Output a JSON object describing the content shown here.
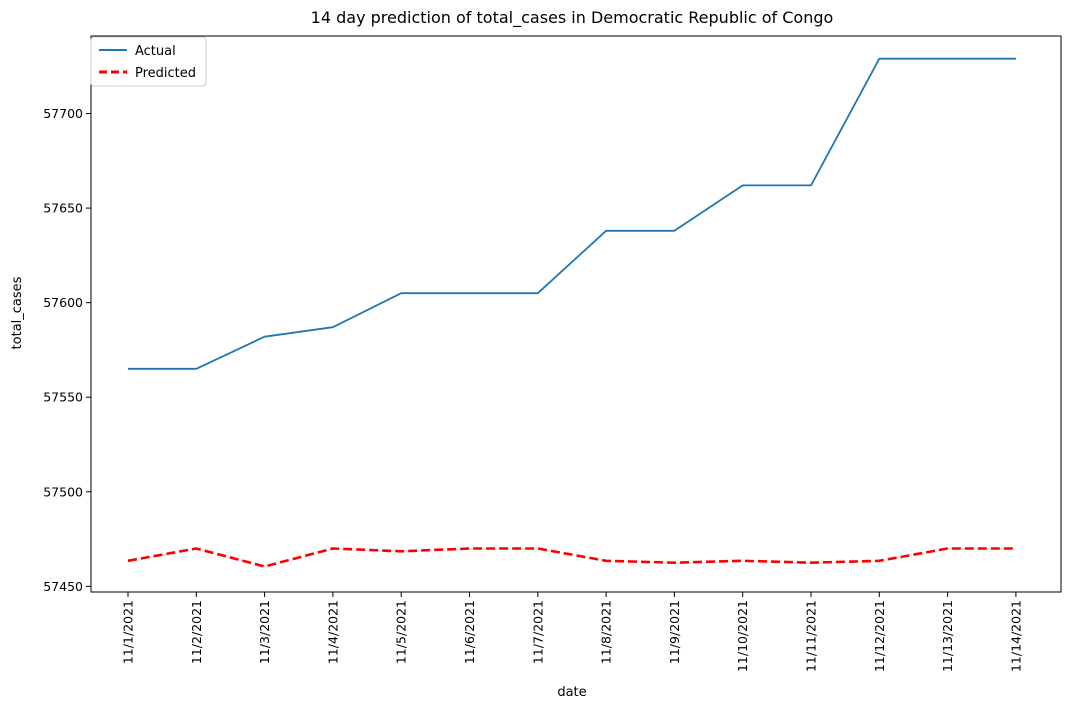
{
  "chart_data": {
    "type": "line",
    "title": "14 day prediction of total_cases in Democratic Republic of Congo",
    "xlabel": "date",
    "ylabel": "total_cases",
    "x": [
      "11/1/2021",
      "11/2/2021",
      "11/3/2021",
      "11/4/2021",
      "11/5/2021",
      "11/6/2021",
      "11/7/2021",
      "11/8/2021",
      "11/9/2021",
      "11/10/2021",
      "11/11/2021",
      "11/12/2021",
      "11/13/2021",
      "11/14/2021"
    ],
    "yticks": [
      57450,
      57500,
      57550,
      57600,
      57650,
      57700
    ],
    "ylim": [
      57447,
      57741
    ],
    "grid": false,
    "legend": "top-left",
    "series": [
      {
        "name": "Actual",
        "color": "#1f77b4",
        "style": "solid",
        "values": [
          57565,
          57565,
          57582,
          57587,
          57605,
          57605,
          57605,
          57638,
          57638,
          57662,
          57662,
          57729,
          57729,
          57729
        ]
      },
      {
        "name": "Predicted",
        "color": "#ff0000",
        "style": "dashed",
        "values": [
          57463.5,
          57470,
          57460.5,
          57470,
          57468.5,
          57470,
          57470,
          57463.5,
          57462.5,
          57463.5,
          57462.5,
          57463.5,
          57470,
          57470
        ]
      }
    ]
  }
}
